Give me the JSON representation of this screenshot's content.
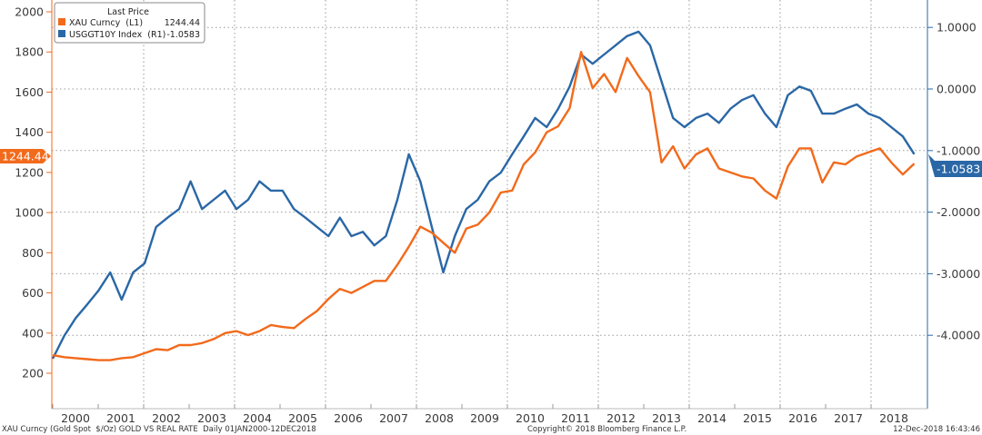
{
  "chart_data": {
    "type": "line",
    "title": "GOLD VS REAL RATE",
    "x_start": 2000.0,
    "x_end": 2018.95,
    "x_ticks": [
      "2000",
      "2001",
      "2002",
      "2003",
      "2004",
      "2005",
      "2006",
      "2007",
      "2008",
      "2009",
      "2010",
      "2011",
      "2012",
      "2013",
      "2014",
      "2015",
      "2016",
      "2017",
      "2018"
    ],
    "y_left": {
      "range": [
        200,
        2000
      ],
      "ticks": [
        "200",
        "400",
        "600",
        "800",
        "1000",
        "1200",
        "1400",
        "1600",
        "1800",
        "2000"
      ]
    },
    "y_right": {
      "range": [
        -4.5,
        1.0
      ],
      "ticks": [
        "1.0000",
        "0.0000",
        "-1.0000",
        "-2.0000",
        "-3.0000",
        "-4.0000"
      ],
      "tick_values": [
        1,
        0,
        -1,
        -2,
        -3,
        -4
      ]
    },
    "series": [
      {
        "name": "XAU Curncy",
        "axis": "L1",
        "color": "#f26a1b",
        "last": "1244.44",
        "values": [
          290,
          280,
          275,
          270,
          265,
          265,
          275,
          280,
          300,
          320,
          315,
          340,
          340,
          350,
          370,
          400,
          410,
          390,
          410,
          440,
          430,
          425,
          470,
          510,
          570,
          620,
          600,
          630,
          660,
          660,
          740,
          830,
          930,
          900,
          850,
          800,
          920,
          940,
          1000,
          1100,
          1110,
          1240,
          1300,
          1400,
          1430,
          1520,
          1800,
          1620,
          1690,
          1600,
          1770,
          1680,
          1600,
          1250,
          1330,
          1220,
          1290,
          1320,
          1220,
          1200,
          1180,
          1170,
          1110,
          1070,
          1230,
          1320,
          1320,
          1150,
          1250,
          1240,
          1280,
          1300,
          1320,
          1250,
          1190,
          1244.44
        ]
      },
      {
        "name": "USGGT10Y Index",
        "axis": "R1",
        "color": "#2a67a6",
        "last": "-1.0583",
        "values": [
          -4.38,
          -4.01,
          -3.72,
          -3.5,
          -3.27,
          -2.98,
          -3.42,
          -2.98,
          -2.83,
          -2.24,
          -2.09,
          -1.95,
          -1.5,
          -1.95,
          -1.8,
          -1.65,
          -1.95,
          -1.8,
          -1.5,
          -1.65,
          -1.65,
          -1.95,
          -2.09,
          -2.24,
          -2.39,
          -2.09,
          -2.39,
          -2.32,
          -2.54,
          -2.39,
          -1.8,
          -1.06,
          -1.5,
          -2.24,
          -2.98,
          -2.39,
          -1.95,
          -1.8,
          -1.5,
          -1.36,
          -1.06,
          -0.77,
          -0.47,
          -0.62,
          -0.32,
          0.04,
          0.56,
          0.41,
          0.56,
          0.71,
          0.86,
          0.93,
          0.71,
          0.12,
          -0.47,
          -0.62,
          -0.47,
          -0.4,
          -0.55,
          -0.32,
          -0.18,
          -0.1,
          -0.4,
          -0.62,
          -0.1,
          0.04,
          -0.03,
          -0.4,
          -0.4,
          -0.32,
          -0.25,
          -0.4,
          -0.47,
          -0.62,
          -0.77,
          -1.0583
        ]
      }
    ],
    "legend": {
      "title": "Last Price",
      "placement": "top-left",
      "rows": [
        {
          "label": "XAU Curncy  (L1)",
          "value": "1244.44"
        },
        {
          "label": "USGGT10Y Index  (R1)",
          "value": "-1.0583"
        }
      ]
    },
    "grid": true
  },
  "footer": {
    "left": "XAU Curncy (Gold Spot  $/Oz) GOLD VS REAL RATE  Daily 01JAN2000-12DEC2018",
    "center": "Copyright© 2018 Bloomberg Finance L.P.",
    "right": "12-Dec-2018 16:43:46"
  }
}
